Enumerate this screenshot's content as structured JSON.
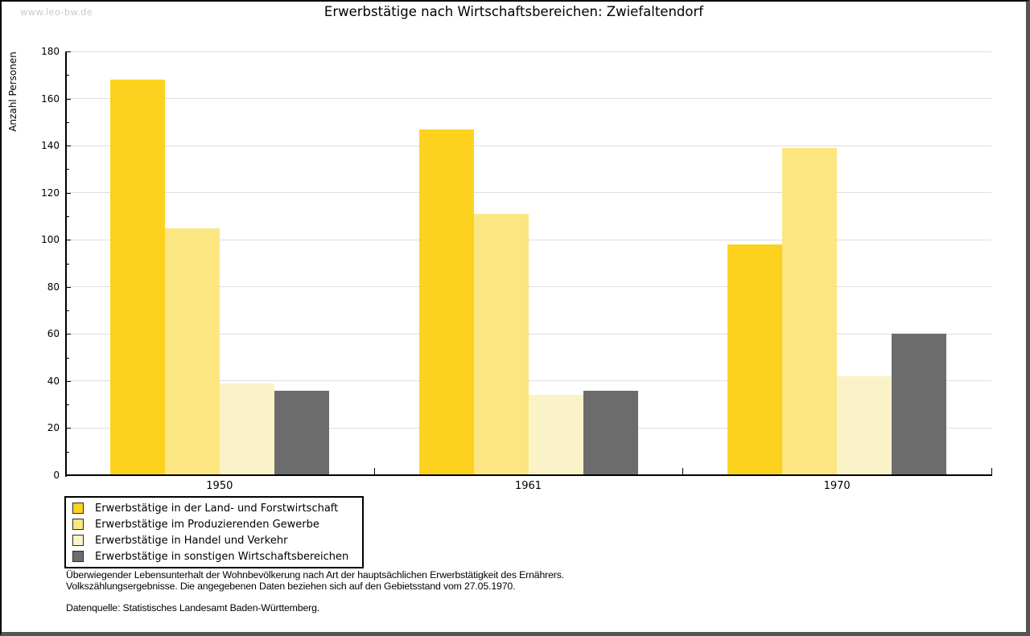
{
  "page": {
    "watermark": "www.leo-bw.de",
    "title": "Erwerbstätige nach Wirtschaftsbereichen: Zwiefaltendorf"
  },
  "chart_data": {
    "type": "bar",
    "title": "Erwerbstätige nach Wirtschaftsbereichen: Zwiefaltendorf",
    "xlabel": "",
    "ylabel": "Anzahl Personen",
    "categories": [
      "1950",
      "1961",
      "1970"
    ],
    "series": [
      {
        "name": "Erwerbstätige in der Land- und Forstwirtschaft",
        "color": "#FCD21E",
        "values": [
          168,
          147,
          98
        ]
      },
      {
        "name": "Erwerbstätige im Produzierenden Gewerbe",
        "color": "#FBE682",
        "values": [
          105,
          111,
          139
        ]
      },
      {
        "name": "Erwerbstätige in Handel und Verkehr",
        "color": "#FBF3C8",
        "values": [
          39,
          34,
          42
        ]
      },
      {
        "name": "Erwerbstätige in sonstigen Wirtschaftsbereichen",
        "color": "#6C6C6C",
        "values": [
          36,
          36,
          60
        ]
      }
    ],
    "ylim": [
      0,
      180
    ],
    "ytick_step": 20,
    "yminor_step": 10,
    "grid": true,
    "legend_position": "bottom-left"
  },
  "footer": {
    "line1": "Überwiegender Lebensunterhalt der Wohnbevölkerung nach Art der hauptsächlichen Erwerbstätigkeit des Ernährers.",
    "line2": "Volkszählungsergebnisse. Die angegebenen Daten beziehen sich auf den Gebietsstand vom 27.05.1970.",
    "source": "Datenquelle: Statistisches Landesamt Baden-Württemberg."
  },
  "colors": {
    "grid": "#DEDEDE",
    "axis": "#000000",
    "watermark": "#C9C9C9",
    "frame_shadow": "#545454"
  }
}
